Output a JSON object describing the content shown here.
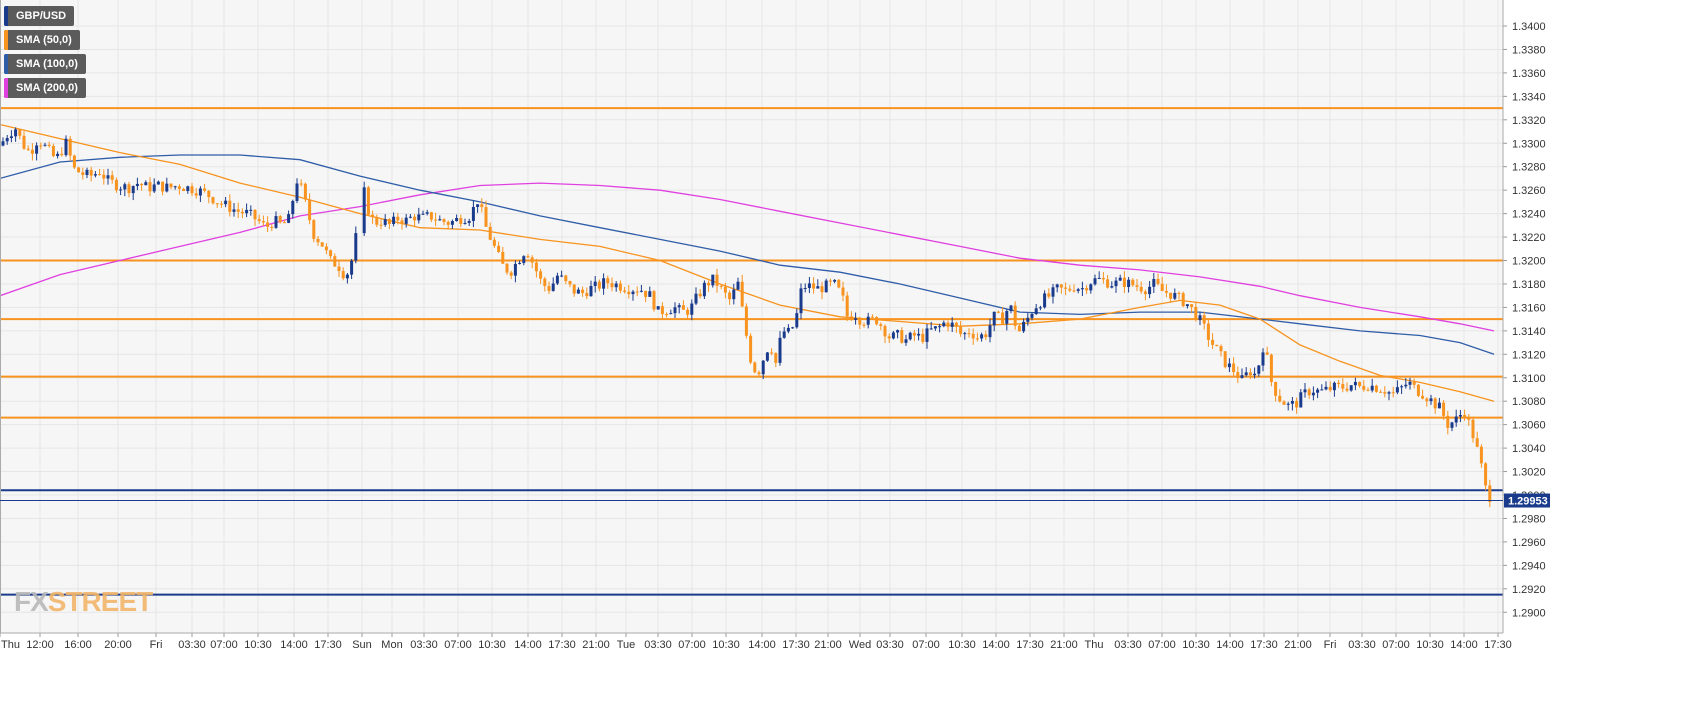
{
  "chart_data": {
    "type": "candlestick",
    "symbol": "GBP/USD",
    "ylim": [
      1.2885,
      1.3425
    ],
    "y_ticks": [
      "1.3400",
      "1.3380",
      "1.3360",
      "1.3340",
      "1.3320",
      "1.3300",
      "1.3280",
      "1.3260",
      "1.3240",
      "1.3220",
      "1.3200",
      "1.3180",
      "1.3160",
      "1.3140",
      "1.3120",
      "1.3100",
      "1.3080",
      "1.3060",
      "1.3040",
      "1.3020",
      "1.3000",
      "1.2980",
      "1.2960",
      "1.2940",
      "1.2920",
      "1.2900"
    ],
    "x_ticks": [
      "Thu",
      "12:00",
      "16:00",
      "20:00",
      "Fri",
      "03:30",
      "07:00",
      "10:30",
      "14:00",
      "17:30",
      "Sun",
      "Mon",
      "03:30",
      "07:00",
      "10:30",
      "14:00",
      "17:30",
      "21:00",
      "Tue",
      "03:30",
      "07:00",
      "10:30",
      "14:00",
      "17:30",
      "21:00",
      "Wed",
      "03:30",
      "07:00",
      "10:30",
      "14:00",
      "17:30",
      "21:00",
      "Thu",
      "03:30",
      "07:00",
      "10:30",
      "14:00",
      "17:30",
      "21:00",
      "Fri",
      "03:30",
      "07:00",
      "10:30",
      "14:00",
      "17:30"
    ],
    "current_price": "1.29953",
    "legend": [
      {
        "label": "GBP/USD",
        "color": "#1a3b8c"
      },
      {
        "label": "SMA (50,0)",
        "color": "#f7931e"
      },
      {
        "label": "SMA (100,0)",
        "color": "#2f5da8"
      },
      {
        "label": "SMA (200,0)",
        "color": "#e040e0"
      }
    ],
    "horizontal_levels": [
      {
        "value": 1.333,
        "color": "#f7931e"
      },
      {
        "value": 1.32,
        "color": "#f7931e"
      },
      {
        "value": 1.315,
        "color": "#f7931e"
      },
      {
        "value": 1.3101,
        "color": "#f7931e"
      },
      {
        "value": 1.3066,
        "color": "#f7931e"
      },
      {
        "value": 1.3004,
        "color": "#1a3b8c"
      },
      {
        "value": 1.2915,
        "color": "#1a3b8c"
      }
    ],
    "close_path": [
      [
        0,
        1.3298
      ],
      [
        8,
        1.3308
      ],
      [
        16,
        1.3313
      ],
      [
        22,
        1.33
      ],
      [
        30,
        1.3292
      ],
      [
        38,
        1.3304
      ],
      [
        46,
        1.3296
      ],
      [
        56,
        1.3286
      ],
      [
        66,
        1.33
      ],
      [
        74,
        1.3278
      ],
      [
        82,
        1.3274
      ],
      [
        90,
        1.3272
      ],
      [
        100,
        1.3276
      ],
      [
        108,
        1.3268
      ],
      [
        118,
        1.3264
      ],
      [
        128,
        1.3262
      ],
      [
        138,
        1.3266
      ],
      [
        148,
        1.3262
      ],
      [
        158,
        1.3264
      ],
      [
        168,
        1.3262
      ],
      [
        178,
        1.3264
      ],
      [
        188,
        1.3262
      ],
      [
        198,
        1.326
      ],
      [
        208,
        1.3256
      ],
      [
        218,
        1.325
      ],
      [
        228,
        1.3246
      ],
      [
        238,
        1.3242
      ],
      [
        248,
        1.324
      ],
      [
        258,
        1.3234
      ],
      [
        266,
        1.3228
      ],
      [
        274,
        1.3234
      ],
      [
        282,
        1.323
      ],
      [
        290,
        1.3236
      ],
      [
        296,
        1.327
      ],
      [
        302,
        1.326
      ],
      [
        308,
        1.324
      ],
      [
        314,
        1.3222
      ],
      [
        322,
        1.3214
      ],
      [
        330,
        1.32
      ],
      [
        338,
        1.3196
      ],
      [
        346,
        1.3186
      ],
      [
        354,
        1.3206
      ],
      [
        362,
        1.3266
      ],
      [
        368,
        1.3244
      ],
      [
        374,
        1.3232
      ],
      [
        382,
        1.3234
      ],
      [
        390,
        1.323
      ],
      [
        398,
        1.3236
      ],
      [
        406,
        1.3234
      ],
      [
        414,
        1.3238
      ],
      [
        422,
        1.3236
      ],
      [
        430,
        1.3238
      ],
      [
        440,
        1.3234
      ],
      [
        450,
        1.3232
      ],
      [
        460,
        1.3236
      ],
      [
        470,
        1.3238
      ],
      [
        478,
        1.3252
      ],
      [
        486,
        1.3228
      ],
      [
        494,
        1.3212
      ],
      [
        502,
        1.3196
      ],
      [
        510,
        1.319
      ],
      [
        518,
        1.32
      ],
      [
        526,
        1.321
      ],
      [
        534,
        1.3196
      ],
      [
        542,
        1.318
      ],
      [
        550,
        1.3176
      ],
      [
        558,
        1.3188
      ],
      [
        566,
        1.318
      ],
      [
        574,
        1.3174
      ],
      [
        582,
        1.3172
      ],
      [
        590,
        1.3176
      ],
      [
        598,
        1.3178
      ],
      [
        606,
        1.3182
      ],
      [
        614,
        1.318
      ],
      [
        622,
        1.3178
      ],
      [
        630,
        1.3176
      ],
      [
        640,
        1.3176
      ],
      [
        650,
        1.317
      ],
      [
        658,
        1.3156
      ],
      [
        666,
        1.3158
      ],
      [
        674,
        1.316
      ],
      [
        682,
        1.3156
      ],
      [
        690,
        1.3158
      ],
      [
        698,
        1.317
      ],
      [
        706,
        1.318
      ],
      [
        714,
        1.3184
      ],
      [
        722,
        1.3174
      ],
      [
        730,
        1.3166
      ],
      [
        738,
        1.318
      ],
      [
        746,
        1.3138
      ],
      [
        752,
        1.311
      ],
      [
        758,
        1.3104
      ],
      [
        764,
        1.3118
      ],
      [
        770,
        1.313
      ],
      [
        776,
        1.3112
      ],
      [
        782,
        1.314
      ],
      [
        790,
        1.3138
      ],
      [
        796,
        1.315
      ],
      [
        802,
        1.3178
      ],
      [
        810,
        1.3178
      ],
      [
        818,
        1.3176
      ],
      [
        826,
        1.3178
      ],
      [
        834,
        1.318
      ],
      [
        842,
        1.317
      ],
      [
        848,
        1.315
      ],
      [
        854,
        1.3156
      ],
      [
        860,
        1.315
      ],
      [
        868,
        1.3148
      ],
      [
        876,
        1.315
      ],
      [
        882,
        1.3144
      ],
      [
        890,
        1.3134
      ],
      [
        898,
        1.3136
      ],
      [
        906,
        1.3132
      ],
      [
        914,
        1.3136
      ],
      [
        922,
        1.3134
      ],
      [
        930,
        1.314
      ],
      [
        938,
        1.3142
      ],
      [
        946,
        1.3148
      ],
      [
        954,
        1.3144
      ],
      [
        962,
        1.3136
      ],
      [
        970,
        1.314
      ],
      [
        978,
        1.3134
      ],
      [
        986,
        1.3138
      ],
      [
        994,
        1.3152
      ],
      [
        1002,
        1.315
      ],
      [
        1010,
        1.3162
      ],
      [
        1018,
        1.3138
      ],
      [
        1026,
        1.3148
      ],
      [
        1034,
        1.316
      ],
      [
        1042,
        1.3166
      ],
      [
        1050,
        1.317
      ],
      [
        1058,
        1.3176
      ],
      [
        1066,
        1.3174
      ],
      [
        1074,
        1.3178
      ],
      [
        1082,
        1.3176
      ],
      [
        1090,
        1.3182
      ],
      [
        1098,
        1.3184
      ],
      [
        1106,
        1.3182
      ],
      [
        1114,
        1.318
      ],
      [
        1122,
        1.3182
      ],
      [
        1130,
        1.318
      ],
      [
        1138,
        1.3178
      ],
      [
        1146,
        1.3176
      ],
      [
        1154,
        1.318
      ],
      [
        1162,
        1.3174
      ],
      [
        1170,
        1.3172
      ],
      [
        1178,
        1.3168
      ],
      [
        1186,
        1.3164
      ],
      [
        1194,
        1.3156
      ],
      [
        1202,
        1.3146
      ],
      [
        1210,
        1.3132
      ],
      [
        1218,
        1.3122
      ],
      [
        1226,
        1.3112
      ],
      [
        1234,
        1.3106
      ],
      [
        1242,
        1.3098
      ],
      [
        1250,
        1.3106
      ],
      [
        1256,
        1.3102
      ],
      [
        1264,
        1.313
      ],
      [
        1272,
        1.3094
      ],
      [
        1280,
        1.3082
      ],
      [
        1288,
        1.3076
      ],
      [
        1296,
        1.3078
      ],
      [
        1304,
        1.3086
      ],
      [
        1312,
        1.309
      ],
      [
        1320,
        1.3088
      ],
      [
        1328,
        1.309
      ],
      [
        1336,
        1.3092
      ],
      [
        1344,
        1.3092
      ],
      [
        1352,
        1.3094
      ],
      [
        1360,
        1.3092
      ],
      [
        1368,
        1.3094
      ],
      [
        1376,
        1.3092
      ],
      [
        1384,
        1.309
      ],
      [
        1392,
        1.3086
      ],
      [
        1400,
        1.309
      ],
      [
        1408,
        1.3096
      ],
      [
        1416,
        1.309
      ],
      [
        1424,
        1.3086
      ],
      [
        1432,
        1.308
      ],
      [
        1440,
        1.3074
      ],
      [
        1448,
        1.306
      ],
      [
        1456,
        1.3064
      ],
      [
        1464,
        1.3072
      ],
      [
        1472,
        1.3054
      ],
      [
        1480,
        1.303
      ],
      [
        1486,
        1.3004
      ],
      [
        1492,
        1.2996
      ]
    ],
    "sma50": [
      [
        0,
        1.3316
      ],
      [
        60,
        1.3304
      ],
      [
        120,
        1.3292
      ],
      [
        180,
        1.3282
      ],
      [
        240,
        1.3266
      ],
      [
        300,
        1.3254
      ],
      [
        360,
        1.324
      ],
      [
        420,
        1.3228
      ],
      [
        480,
        1.3226
      ],
      [
        540,
        1.3218
      ],
      [
        600,
        1.3212
      ],
      [
        660,
        1.32
      ],
      [
        720,
        1.318
      ],
      [
        780,
        1.3162
      ],
      [
        840,
        1.3152
      ],
      [
        900,
        1.3148
      ],
      [
        960,
        1.3144
      ],
      [
        1020,
        1.3146
      ],
      [
        1080,
        1.315
      ],
      [
        1140,
        1.316
      ],
      [
        1180,
        1.3166
      ],
      [
        1220,
        1.3162
      ],
      [
        1260,
        1.315
      ],
      [
        1300,
        1.3128
      ],
      [
        1340,
        1.3114
      ],
      [
        1380,
        1.3102
      ],
      [
        1420,
        1.3096
      ],
      [
        1460,
        1.3088
      ],
      [
        1494,
        1.308
      ]
    ],
    "sma100": [
      [
        0,
        1.327
      ],
      [
        60,
        1.3284
      ],
      [
        120,
        1.3288
      ],
      [
        180,
        1.329
      ],
      [
        240,
        1.329
      ],
      [
        300,
        1.3286
      ],
      [
        360,
        1.3272
      ],
      [
        420,
        1.326
      ],
      [
        480,
        1.325
      ],
      [
        540,
        1.3238
      ],
      [
        600,
        1.3228
      ],
      [
        660,
        1.3218
      ],
      [
        720,
        1.3208
      ],
      [
        780,
        1.3196
      ],
      [
        840,
        1.319
      ],
      [
        900,
        1.318
      ],
      [
        960,
        1.3168
      ],
      [
        1020,
        1.3156
      ],
      [
        1080,
        1.3154
      ],
      [
        1140,
        1.3156
      ],
      [
        1200,
        1.3156
      ],
      [
        1260,
        1.315
      ],
      [
        1300,
        1.3146
      ],
      [
        1360,
        1.314
      ],
      [
        1420,
        1.3136
      ],
      [
        1460,
        1.313
      ],
      [
        1494,
        1.312
      ]
    ],
    "sma200": [
      [
        0,
        1.317
      ],
      [
        60,
        1.3188
      ],
      [
        120,
        1.32
      ],
      [
        180,
        1.3212
      ],
      [
        240,
        1.3224
      ],
      [
        300,
        1.3238
      ],
      [
        360,
        1.3246
      ],
      [
        420,
        1.3256
      ],
      [
        480,
        1.3264
      ],
      [
        540,
        1.3266
      ],
      [
        600,
        1.3264
      ],
      [
        660,
        1.326
      ],
      [
        720,
        1.3252
      ],
      [
        780,
        1.3242
      ],
      [
        840,
        1.3232
      ],
      [
        900,
        1.3222
      ],
      [
        960,
        1.3212
      ],
      [
        1020,
        1.3202
      ],
      [
        1080,
        1.3196
      ],
      [
        1140,
        1.3192
      ],
      [
        1200,
        1.3186
      ],
      [
        1260,
        1.3178
      ],
      [
        1300,
        1.317
      ],
      [
        1360,
        1.316
      ],
      [
        1420,
        1.3152
      ],
      [
        1460,
        1.3146
      ],
      [
        1494,
        1.314
      ]
    ]
  },
  "logo": {
    "part1": "FX",
    "part2": "STREET"
  }
}
